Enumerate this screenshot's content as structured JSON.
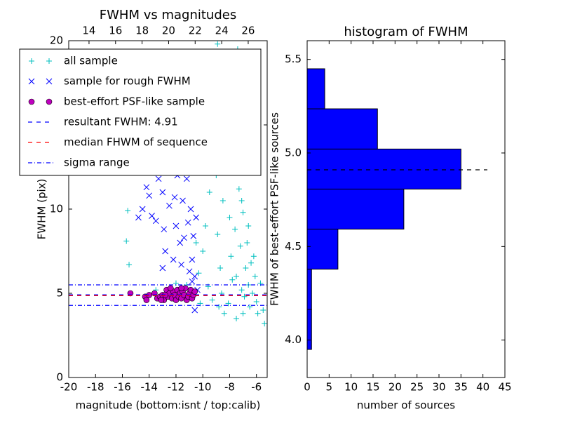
{
  "chart_data": [
    {
      "type": "scatter",
      "title": "FWHM vs magnitudes",
      "xlabel": "magnitude (bottom:isnt / top:calib)",
      "ylabel": "FWHM (pix)",
      "xlim": [
        -20,
        -5.2
      ],
      "xticks": [
        -20,
        -18,
        -16,
        -14,
        -12,
        -10,
        -8,
        -6
      ],
      "x2lim": [
        12.47,
        27.43
      ],
      "x2ticks": [
        14,
        16,
        18,
        20,
        22,
        24,
        26
      ],
      "ylim": [
        0,
        20
      ],
      "yticks": [
        0,
        5,
        10,
        15,
        20
      ],
      "legend": "upper left",
      "series": [
        {
          "name": "all sample",
          "color": "#00bfbf",
          "marker": "plus",
          "x": [
            -15.6,
            -15.7,
            -15.5,
            -15.4,
            -13.5,
            -12.0,
            -11.2,
            -10.3,
            -10.0,
            -9.8,
            -9.5,
            -9.2,
            -9.0,
            -8.9,
            -8.7,
            -8.5,
            -8.3,
            -8.2,
            -8.0,
            -7.9,
            -7.8,
            -7.7,
            -7.6,
            -7.5,
            -7.4,
            -7.3,
            -7.2,
            -7.1,
            -7.0,
            -6.9,
            -6.8,
            -6.7,
            -6.6,
            -6.5,
            -6.4,
            -6.3,
            -6.2,
            -6.0,
            -5.9,
            -5.7,
            -5.5,
            -5.4,
            -9.6,
            -9.3,
            -8.8,
            -8.6,
            -8.4,
            -8.1,
            -7.5,
            -7.0,
            -9.0,
            -8.6,
            -10.2,
            -10.5,
            -9.7,
            -8.9,
            -7.8,
            -7.1,
            -6.6,
            -6.1
          ],
          "y": [
            9.9,
            8.1,
            6.7,
            5.0,
            5.2,
            5.6,
            5.5,
            6.2,
            7.5,
            9.0,
            11.0,
            13.2,
            12.0,
            8.5,
            6.5,
            10.5,
            14.0,
            17.0,
            9.5,
            7.2,
            5.8,
            12.5,
            8.8,
            6.0,
            19.5,
            11.2,
            7.8,
            5.2,
            9.8,
            4.8,
            6.5,
            8.0,
            5.5,
            4.2,
            6.8,
            5.0,
            7.2,
            4.5,
            3.8,
            5.6,
            4.0,
            3.2,
            5.4,
            4.6,
            4.2,
            5.0,
            3.8,
            4.4,
            3.5,
            3.8,
            16.0,
            18.5,
            4.4,
            8.0,
            14.5,
            19.8,
            15.0,
            10.5,
            9.0,
            6.0
          ]
        },
        {
          "name": "sample for rough FWHM",
          "color": "#0000ff",
          "marker": "x",
          "x": [
            -14.5,
            -14.2,
            -14.0,
            -13.5,
            -13.0,
            -12.8,
            -12.5,
            -12.3,
            -12.0,
            -11.8,
            -11.6,
            -11.4,
            -11.2,
            -11.0,
            -10.9,
            -10.8,
            -10.7,
            -10.6,
            -10.5,
            -13.0,
            -12.2,
            -11.9,
            -11.5,
            -11.0,
            -10.8,
            -14.8,
            -13.3,
            -12.6,
            -11.3,
            -10.6,
            -10.4,
            -12.9,
            -11.7,
            -10.7,
            -13.8,
            -12.1,
            -11.1,
            -10.9
          ],
          "y": [
            10.0,
            11.3,
            10.8,
            9.3,
            11.0,
            7.5,
            10.2,
            12.5,
            9.0,
            13.2,
            6.7,
            8.3,
            11.8,
            14.0,
            10.0,
            7.0,
            12.2,
            6.0,
            9.5,
            6.5,
            7.0,
            12.0,
            10.5,
            6.3,
            5.7,
            9.5,
            11.8,
            13.5,
            14.5,
            4.0,
            5.2,
            8.8,
            8.0,
            8.4,
            9.6,
            10.7,
            9.2,
            13.0
          ]
        },
        {
          "name": "best-effort PSF-like sample",
          "color": "#bf00bf",
          "marker": "circle",
          "x": [
            -15.4,
            -14.3,
            -14.2,
            -14.0,
            -13.6,
            -13.4,
            -13.2,
            -13.0,
            -12.9,
            -12.7,
            -12.6,
            -12.5,
            -12.3,
            -12.2,
            -12.1,
            -12.0,
            -11.9,
            -11.8,
            -11.7,
            -11.6,
            -11.5,
            -11.4,
            -11.3,
            -11.2,
            -11.1,
            -11.0,
            -10.9,
            -10.8,
            -10.7,
            -10.6,
            -12.4,
            -11.6,
            -13.1,
            -12.8
          ],
          "y": [
            5.0,
            4.8,
            4.6,
            4.9,
            5.0,
            4.7,
            4.8,
            4.9,
            4.6,
            5.2,
            4.8,
            5.0,
            4.7,
            5.1,
            4.9,
            4.6,
            5.2,
            4.8,
            5.0,
            4.7,
            5.1,
            4.9,
            5.3,
            4.6,
            4.8,
            5.0,
            5.2,
            4.7,
            4.9,
            5.1,
            5.3,
            5.3,
            4.6,
            4.9
          ]
        }
      ],
      "hlines": [
        {
          "name": "resultant FWHM: 4.91",
          "color": "#0000ff",
          "style": "dashed",
          "y": [
            4.91
          ]
        },
        {
          "name": "median FHWM of sequence",
          "color": "#ff0000",
          "style": "dashed",
          "y": [
            4.86
          ]
        },
        {
          "name": "sigma range",
          "color": "#0000ff",
          "style": "dashdot",
          "y": [
            5.5,
            4.28
          ]
        }
      ]
    },
    {
      "type": "histogram",
      "orientation": "horizontal",
      "title": "histogram of FWHM",
      "xlabel": "number of sources",
      "ylabel": "FWHM of best-effort PSF-like sources",
      "xlim": [
        0,
        45
      ],
      "xticks": [
        0,
        5,
        10,
        15,
        20,
        25,
        30,
        35,
        40,
        45
      ],
      "ylim": [
        3.8,
        5.6
      ],
      "yticks": [
        {
          "value": 4,
          "label": "4.0"
        },
        4.5,
        {
          "value": 5,
          "label": "5.0"
        },
        5.5
      ],
      "color": "#0000ff",
      "bins": [
        3.95,
        4.164,
        4.379,
        4.593,
        4.807,
        5.021,
        5.236,
        5.45
      ],
      "counts": [
        1,
        1,
        7,
        22,
        35,
        16,
        4
      ],
      "ref_line": {
        "y": 4.91,
        "x_end": 41,
        "color": "#000000"
      }
    }
  ]
}
